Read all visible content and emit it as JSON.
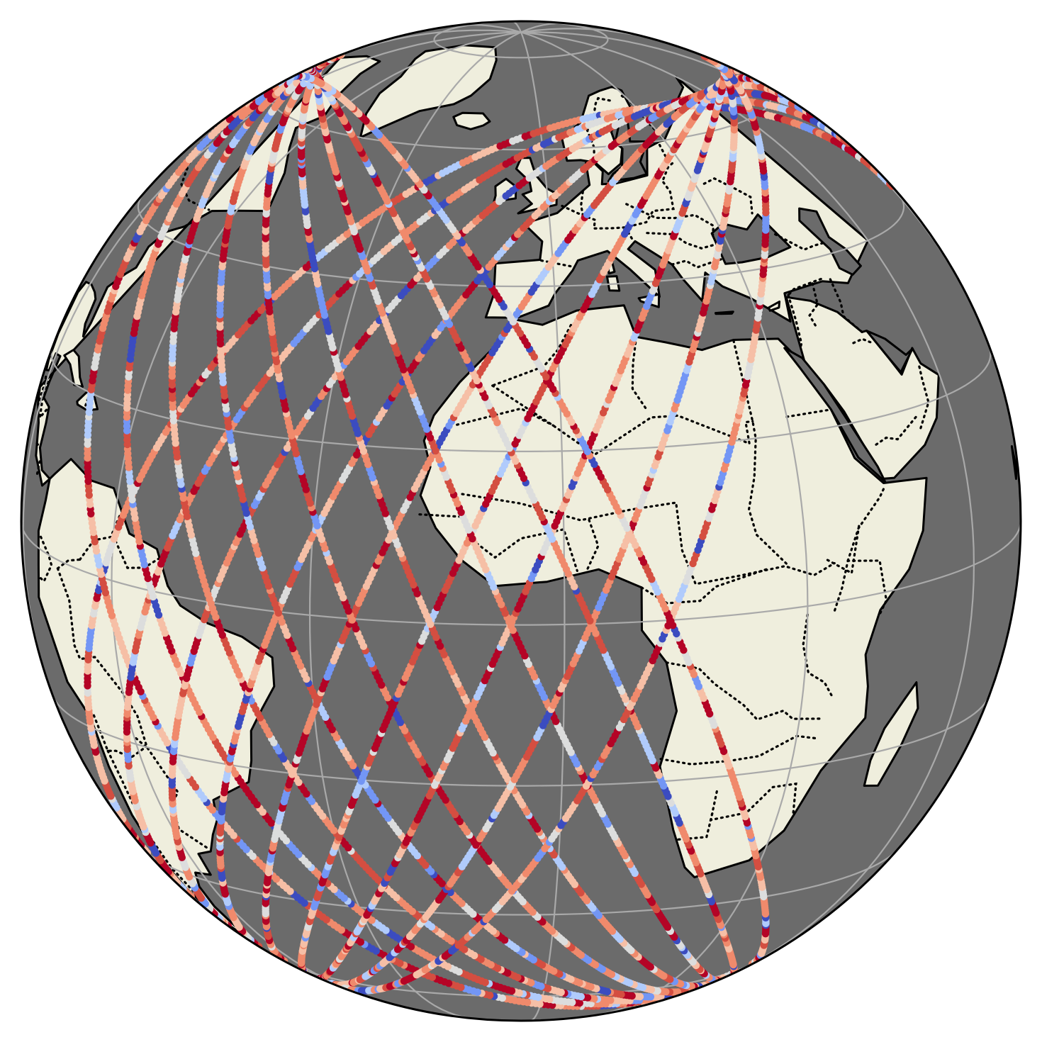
{
  "map": {
    "projection": "orthographic",
    "center_lon": -5,
    "center_lat": 12,
    "ocean_color": "#6b6b6b",
    "land_color": "#efeedd",
    "coast_color": "#000000",
    "border_style": "dotted",
    "graticule_color": "#a9a9a9",
    "track_colormap": "coolwarm",
    "track_palette": [
      "#3b4cc0",
      "#7396f5",
      "#b0cbfc",
      "#dcdddd",
      "#f6bfa6",
      "#f08a6c",
      "#d44e41",
      "#b40426"
    ],
    "features": [
      "land",
      "ocean",
      "coastlines",
      "country-borders",
      "gridlines",
      "satellite-ground-tracks"
    ]
  }
}
